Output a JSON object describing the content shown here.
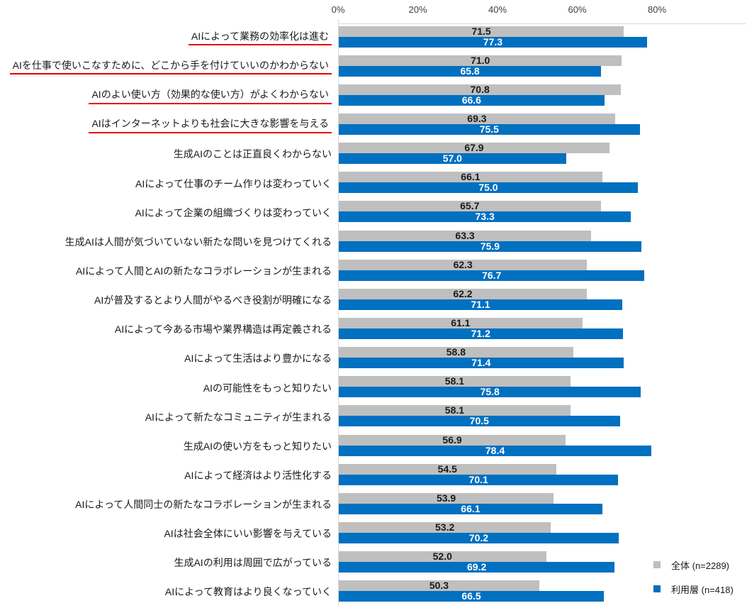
{
  "chart_data": {
    "type": "bar",
    "orientation": "horizontal",
    "title": "",
    "xlabel": "",
    "ylabel": "",
    "axis": {
      "tick_labels": [
        "0%",
        "20%",
        "40%",
        "60%",
        "80%"
      ],
      "tick_values": [
        0,
        20,
        40,
        60,
        80
      ],
      "xlim": [
        0,
        102.5
      ],
      "grid": false,
      "legend_position": "bottom-right"
    },
    "categories": [
      "AIによって業務の効率化は進む",
      "AIを仕事で使いこなすために、どこから手を付けていいのかわからない",
      "AIのよい使い方（効果的な使い方）がよくわからない",
      "AIはインターネットよりも社会に大きな影響を与える",
      "生成AIのことは正直良くわからない",
      "AIによって仕事のチーム作りは変わっていく",
      "AIによって企業の組織づくりは変わっていく",
      "生成AIは人間が気づいていない新たな問いを見つけてくれる",
      "AIによって人間とAIの新たなコラボレーションが生まれる",
      "AIが普及するとより人間がやるべき役割が明確になる",
      "AIによって今ある市場や業界構造は再定義される",
      "AIによって生活はより豊かになる",
      "AIの可能性をもっと知りたい",
      "AIによって新たなコミュニティが生まれる",
      "生成AIの使い方をもっと知りたい",
      "AIによって経済はより活性化する",
      "AIによって人間同士の新たなコラボレーションが生まれる",
      "AIは社会全体にいい影響を与えている",
      "生成AIの利用は周囲で広がっている",
      "AIによって教育はより良くなっていく"
    ],
    "underlined_category_indexes": [
      0,
      1,
      2,
      3
    ],
    "series": [
      {
        "name": "全体 (n=2289)",
        "color": "#BFBFBF",
        "values": [
          71.5,
          71.0,
          70.8,
          69.3,
          67.9,
          66.1,
          65.7,
          63.3,
          62.3,
          62.2,
          61.1,
          58.8,
          58.1,
          58.1,
          56.9,
          54.5,
          53.9,
          53.2,
          52.0,
          50.3
        ]
      },
      {
        "name": "利用層 (n=418)",
        "color": "#0070C0",
        "values": [
          77.3,
          65.8,
          66.6,
          75.5,
          57.0,
          75.0,
          73.3,
          75.9,
          76.7,
          71.1,
          71.2,
          71.4,
          75.8,
          70.5,
          78.4,
          70.1,
          66.1,
          70.2,
          69.2,
          66.5
        ]
      }
    ],
    "value_label_decimals": 1
  },
  "legend": {
    "items": [
      {
        "label": "全体 (n=2289)",
        "color": "#BFBFBF"
      },
      {
        "label": "利用層 (n=418)",
        "color": "#0070C0"
      }
    ]
  },
  "colors": {
    "bar_total": "#BFBFBF",
    "bar_users": "#0070C0",
    "underline": "#E60000",
    "axis_line": "#D9D9D9",
    "value_on_total": "#1A1A1A",
    "value_on_users": "#FFFFFF"
  }
}
